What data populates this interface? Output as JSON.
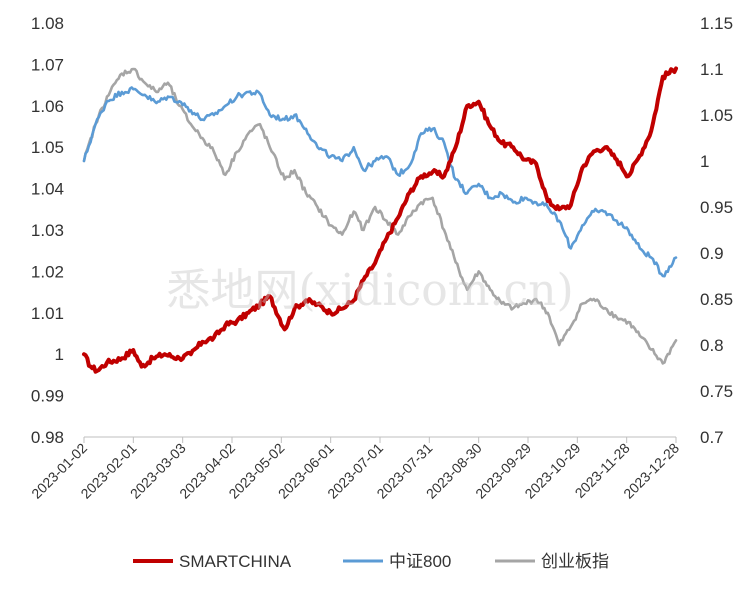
{
  "watermark": "悉地网(xidicom.cn)",
  "chart_data": {
    "type": "line",
    "x_start": "2023-01-02",
    "x_end": "2023-12-28",
    "x_tick_labels": [
      "2023-01-02",
      "2023-02-01",
      "2023-03-03",
      "2023-04-02",
      "2023-05-02",
      "2023-06-01",
      "2023-07-01",
      "2023-07-31",
      "2023-08-30",
      "2023-09-29",
      "2023-10-29",
      "2023-11-28",
      "2023-12-28"
    ],
    "y_left": {
      "min": 0.98,
      "max": 1.08,
      "ticks": [
        "0.98",
        "0.99",
        "1",
        "1.01",
        "1.02",
        "1.03",
        "1.04",
        "1.05",
        "1.06",
        "1.07",
        "1.08"
      ]
    },
    "y_right": {
      "min": 0.7,
      "max": 1.15,
      "ticks": [
        "0.7",
        "0.75",
        "0.8",
        "0.85",
        "0.9",
        "0.95",
        "1",
        "1.05",
        "1.1",
        "1.15"
      ]
    },
    "legend_position": "bottom",
    "series": [
      {
        "name": "SMARTCHINA",
        "axis": "left",
        "color": "#c00000",
        "points": [
          [
            "2023-01-02",
            1.0
          ],
          [
            "2023-01-06",
            0.997
          ],
          [
            "2023-01-10",
            0.996
          ],
          [
            "2023-01-16",
            0.998
          ],
          [
            "2023-01-25",
            0.999
          ],
          [
            "2023-02-01",
            1.001
          ],
          [
            "2023-02-06",
            0.997
          ],
          [
            "2023-02-13",
            0.999
          ],
          [
            "2023-02-20",
            1.0
          ],
          [
            "2023-03-01",
            0.999
          ],
          [
            "2023-03-08",
            1.0
          ],
          [
            "2023-03-15",
            1.003
          ],
          [
            "2023-03-22",
            1.004
          ],
          [
            "2023-03-29",
            1.007
          ],
          [
            "2023-04-05",
            1.008
          ],
          [
            "2023-04-12",
            1.01
          ],
          [
            "2023-04-19",
            1.012
          ],
          [
            "2023-04-25",
            1.014
          ],
          [
            "2023-05-04",
            1.006
          ],
          [
            "2023-05-10",
            1.011
          ],
          [
            "2023-05-17",
            1.013
          ],
          [
            "2023-05-24",
            1.012
          ],
          [
            "2023-06-01",
            1.01
          ],
          [
            "2023-06-08",
            1.011
          ],
          [
            "2023-06-15",
            1.013
          ],
          [
            "2023-06-21",
            1.018
          ],
          [
            "2023-06-28",
            1.022
          ],
          [
            "2023-07-05",
            1.028
          ],
          [
            "2023-07-12",
            1.033
          ],
          [
            "2023-07-19",
            1.039
          ],
          [
            "2023-07-26",
            1.043
          ],
          [
            "2023-08-02",
            1.044
          ],
          [
            "2023-08-09",
            1.043
          ],
          [
            "2023-08-16",
            1.05
          ],
          [
            "2023-08-23",
            1.06
          ],
          [
            "2023-08-30",
            1.061
          ],
          [
            "2023-09-06",
            1.055
          ],
          [
            "2023-09-13",
            1.051
          ],
          [
            "2023-09-20",
            1.05
          ],
          [
            "2023-09-27",
            1.047
          ],
          [
            "2023-10-04",
            1.046
          ],
          [
            "2023-10-11",
            1.037
          ],
          [
            "2023-10-18",
            1.035
          ],
          [
            "2023-10-25",
            1.036
          ],
          [
            "2023-11-01",
            1.045
          ],
          [
            "2023-11-08",
            1.049
          ],
          [
            "2023-11-15",
            1.05
          ],
          [
            "2023-11-22",
            1.047
          ],
          [
            "2023-11-29",
            1.043
          ],
          [
            "2023-12-06",
            1.048
          ],
          [
            "2023-12-13",
            1.054
          ],
          [
            "2023-12-20",
            1.067
          ],
          [
            "2023-12-28",
            1.069
          ]
        ]
      },
      {
        "name": "中证800",
        "axis": "right",
        "color": "#5b9bd5",
        "points": [
          [
            "2023-01-02",
            1.0
          ],
          [
            "2023-01-09",
            1.04
          ],
          [
            "2023-01-16",
            1.065
          ],
          [
            "2023-01-25",
            1.075
          ],
          [
            "2023-02-01",
            1.078
          ],
          [
            "2023-02-08",
            1.072
          ],
          [
            "2023-02-15",
            1.063
          ],
          [
            "2023-02-22",
            1.07
          ],
          [
            "2023-03-01",
            1.065
          ],
          [
            "2023-03-08",
            1.055
          ],
          [
            "2023-03-15",
            1.045
          ],
          [
            "2023-03-22",
            1.05
          ],
          [
            "2023-03-29",
            1.06
          ],
          [
            "2023-04-05",
            1.07
          ],
          [
            "2023-04-12",
            1.075
          ],
          [
            "2023-04-19",
            1.073
          ],
          [
            "2023-04-25",
            1.05
          ],
          [
            "2023-05-04",
            1.045
          ],
          [
            "2023-05-10",
            1.05
          ],
          [
            "2023-05-17",
            1.035
          ],
          [
            "2023-05-24",
            1.015
          ],
          [
            "2023-06-01",
            1.005
          ],
          [
            "2023-06-08",
            1.0
          ],
          [
            "2023-06-15",
            1.015
          ],
          [
            "2023-06-21",
            0.99
          ],
          [
            "2023-06-28",
            1.0
          ],
          [
            "2023-07-05",
            1.005
          ],
          [
            "2023-07-12",
            0.985
          ],
          [
            "2023-07-19",
            0.995
          ],
          [
            "2023-07-26",
            1.03
          ],
          [
            "2023-08-02",
            1.035
          ],
          [
            "2023-08-09",
            1.02
          ],
          [
            "2023-08-16",
            0.98
          ],
          [
            "2023-08-23",
            0.965
          ],
          [
            "2023-08-30",
            0.975
          ],
          [
            "2023-09-06",
            0.96
          ],
          [
            "2023-09-13",
            0.965
          ],
          [
            "2023-09-20",
            0.955
          ],
          [
            "2023-09-27",
            0.96
          ],
          [
            "2023-10-04",
            0.955
          ],
          [
            "2023-10-11",
            0.95
          ],
          [
            "2023-10-18",
            0.935
          ],
          [
            "2023-10-25",
            0.905
          ],
          [
            "2023-11-01",
            0.93
          ],
          [
            "2023-11-08",
            0.945
          ],
          [
            "2023-11-15",
            0.945
          ],
          [
            "2023-11-22",
            0.935
          ],
          [
            "2023-11-29",
            0.925
          ],
          [
            "2023-12-06",
            0.905
          ],
          [
            "2023-12-13",
            0.895
          ],
          [
            "2023-12-20",
            0.875
          ],
          [
            "2023-12-28",
            0.895
          ]
        ]
      },
      {
        "name": "创业板指",
        "axis": "right",
        "color": "#a5a5a5",
        "points": [
          [
            "2023-01-02",
            1.0
          ],
          [
            "2023-01-09",
            1.04
          ],
          [
            "2023-01-16",
            1.07
          ],
          [
            "2023-01-25",
            1.095
          ],
          [
            "2023-02-01",
            1.1
          ],
          [
            "2023-02-08",
            1.085
          ],
          [
            "2023-02-15",
            1.075
          ],
          [
            "2023-02-22",
            1.085
          ],
          [
            "2023-03-01",
            1.06
          ],
          [
            "2023-03-08",
            1.04
          ],
          [
            "2023-03-15",
            1.025
          ],
          [
            "2023-03-22",
            1.01
          ],
          [
            "2023-03-29",
            0.985
          ],
          [
            "2023-04-05",
            1.01
          ],
          [
            "2023-04-12",
            1.03
          ],
          [
            "2023-04-19",
            1.04
          ],
          [
            "2023-04-25",
            1.015
          ],
          [
            "2023-05-04",
            0.98
          ],
          [
            "2023-05-10",
            0.99
          ],
          [
            "2023-05-17",
            0.965
          ],
          [
            "2023-05-24",
            0.95
          ],
          [
            "2023-06-01",
            0.93
          ],
          [
            "2023-06-08",
            0.92
          ],
          [
            "2023-06-15",
            0.945
          ],
          [
            "2023-06-21",
            0.925
          ],
          [
            "2023-06-28",
            0.95
          ],
          [
            "2023-07-05",
            0.935
          ],
          [
            "2023-07-12",
            0.92
          ],
          [
            "2023-07-19",
            0.94
          ],
          [
            "2023-07-26",
            0.955
          ],
          [
            "2023-08-02",
            0.96
          ],
          [
            "2023-08-09",
            0.925
          ],
          [
            "2023-08-16",
            0.89
          ],
          [
            "2023-08-23",
            0.86
          ],
          [
            "2023-08-30",
            0.88
          ],
          [
            "2023-09-06",
            0.86
          ],
          [
            "2023-09-13",
            0.845
          ],
          [
            "2023-09-20",
            0.84
          ],
          [
            "2023-09-27",
            0.845
          ],
          [
            "2023-10-04",
            0.85
          ],
          [
            "2023-10-11",
            0.835
          ],
          [
            "2023-10-18",
            0.8
          ],
          [
            "2023-10-25",
            0.82
          ],
          [
            "2023-11-01",
            0.845
          ],
          [
            "2023-11-08",
            0.85
          ],
          [
            "2023-11-15",
            0.84
          ],
          [
            "2023-11-22",
            0.83
          ],
          [
            "2023-11-29",
            0.825
          ],
          [
            "2023-12-06",
            0.81
          ],
          [
            "2023-12-13",
            0.795
          ],
          [
            "2023-12-20",
            0.78
          ],
          [
            "2023-12-28",
            0.805
          ]
        ]
      }
    ]
  }
}
